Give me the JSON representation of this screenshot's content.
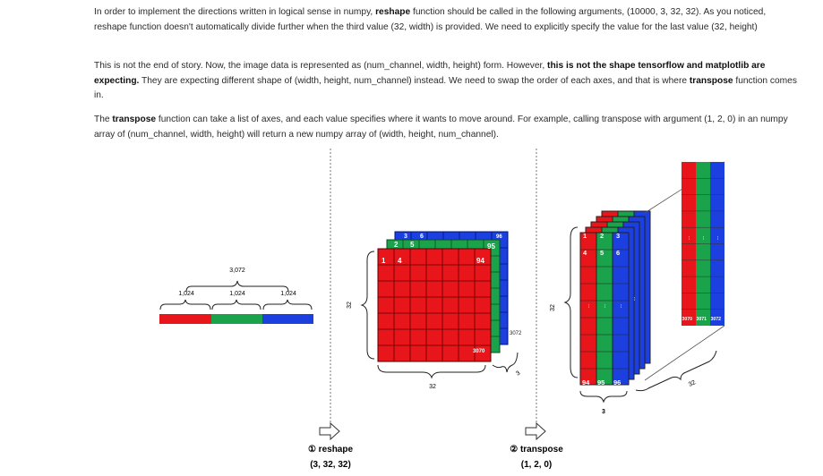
{
  "paragraphs": {
    "p1": {
      "t1": "In order to implement the directions written in logical sense in numpy, ",
      "b1": "reshape",
      "t2": " function should be called in the following arguments, (10000, 3, 32, 32). As you noticed, reshape function doesn't automatically divide further when the third value (32, width) is provided. We need to explicitly specify the value for the last value (32, height)"
    },
    "p2": {
      "t1": "This is not the end of story. Now, the image data is represented as (num_channel, width, height) form. However, ",
      "b1": "this is not the shape tensorflow and matplotlib are expecting.",
      "t2": " They are expecting different shape of (width, height, num_channel) instead. We need to swap the order of each axes, and that is where ",
      "b2": "transpose",
      "t3": " function comes in."
    },
    "p3": {
      "t1": "The ",
      "b1": "transpose",
      "t2": " function can take a list of axes, and each value specifies where it wants to move around. For example, calling transpose with argument (1, 2, 0) in an numpy array of (num_channel, width, height) will return a new numpy array of (width, height, num_channel)."
    }
  },
  "figure": {
    "bar": {
      "total_label": "3,072",
      "segment_labels": [
        "1,024",
        "1,024",
        "1,024"
      ],
      "colors": [
        "#e8151b",
        "#1aa34a",
        "#1c3fe0"
      ]
    },
    "cube": {
      "height_label": "32",
      "width_label": "32",
      "depth_label": "3",
      "red_nums": [
        "1",
        "4",
        "94",
        "3070"
      ],
      "green_nums": [
        "2",
        "5",
        "95"
      ],
      "blue_nums": [
        "3",
        "6",
        "96",
        "3072"
      ]
    },
    "stack": {
      "height_label": "32",
      "width_label": "3",
      "depth_label": "32",
      "top_nums": [
        "1",
        "2",
        "3",
        "4",
        "5",
        "6"
      ],
      "bottom_nums": [
        "94",
        "95",
        "96"
      ],
      "last_nums": [
        "3070",
        "3071",
        "3072"
      ],
      "dots": "..."
    },
    "step1": {
      "title": "① reshape",
      "args": "(3, 32, 32)"
    },
    "step2": {
      "title": "② transpose",
      "args": "(1, 2, 0)"
    }
  }
}
